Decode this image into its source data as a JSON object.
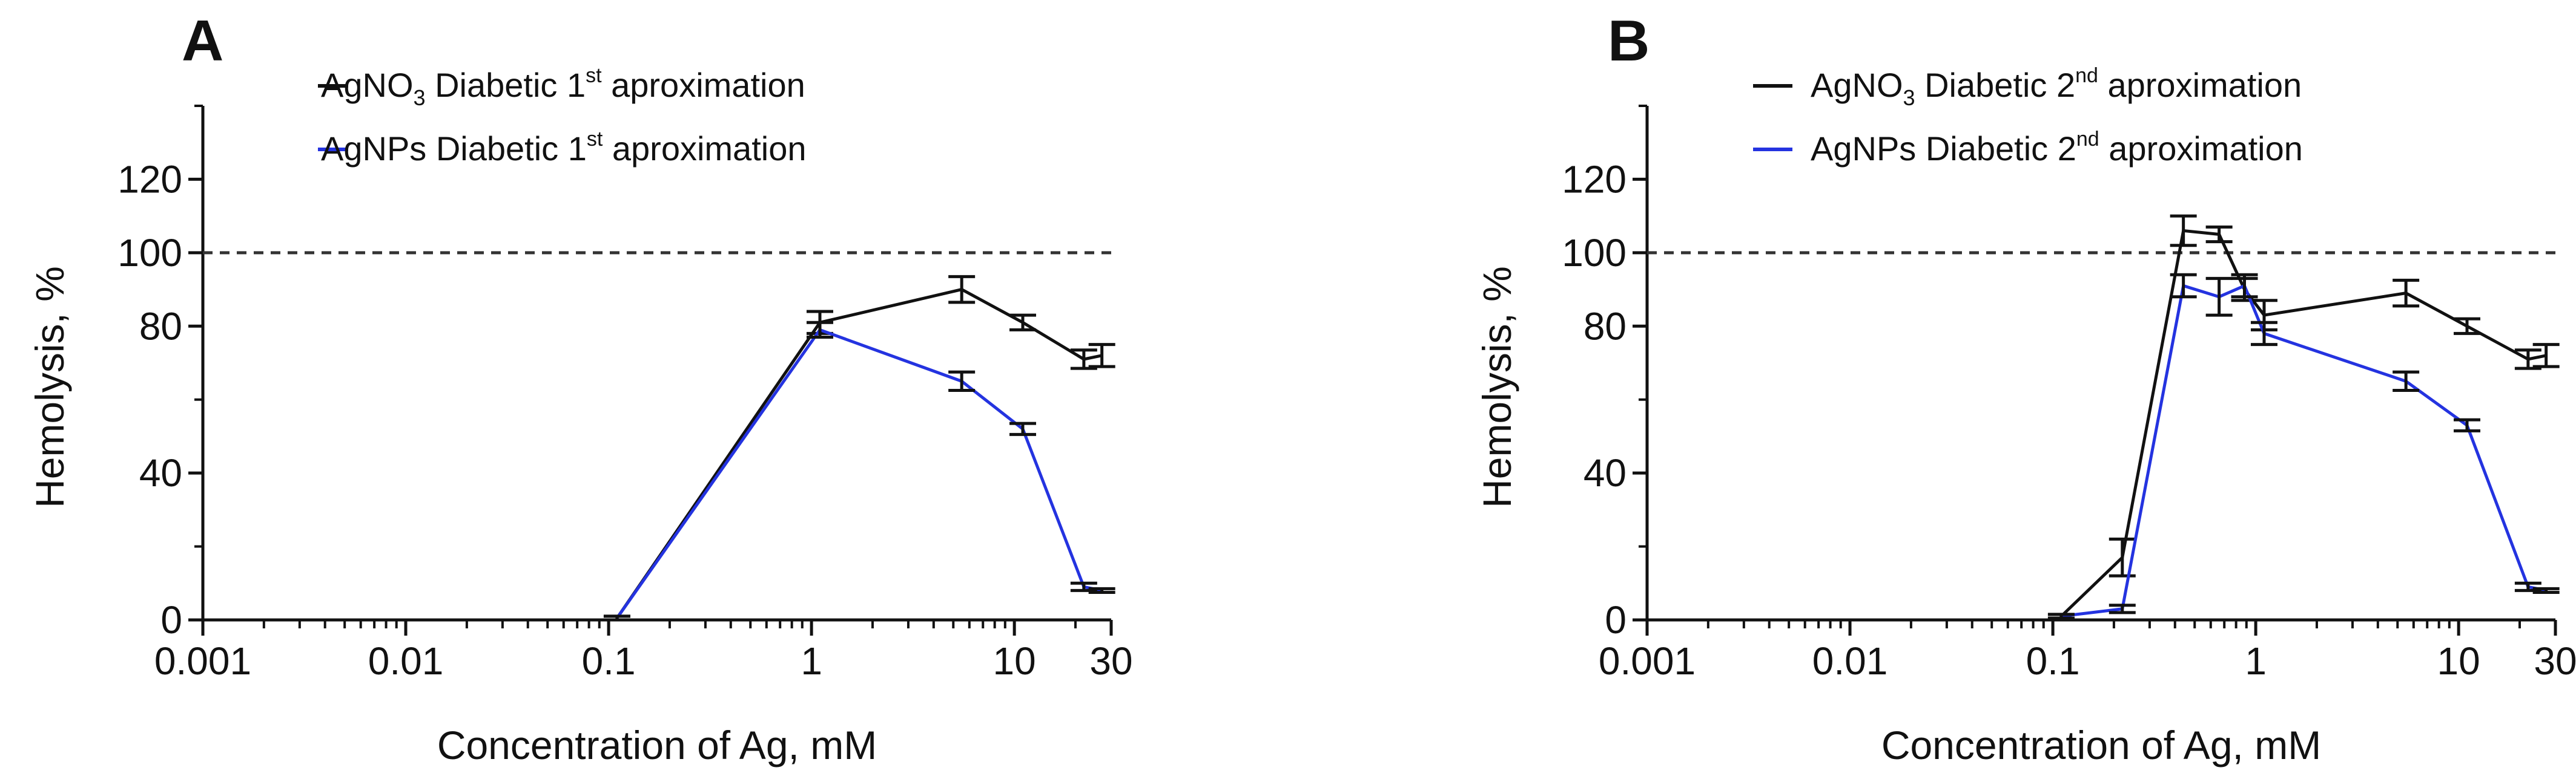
{
  "colors": {
    "series1": "#111111",
    "series2": "#2433e0",
    "reference": "#333333"
  },
  "chart_data": [
    {
      "type": "line",
      "panel_label": "A",
      "xlabel": "Concentration of Ag, mM",
      "ylabel": "Hemolysis, %",
      "xscale": "log",
      "xlim": [
        0.001,
        30
      ],
      "ylim": [
        0,
        140
      ],
      "xticks": [
        {
          "value": 0.001,
          "label": "0.001"
        },
        {
          "value": 0.01,
          "label": "0.01"
        },
        {
          "value": 0.1,
          "label": "0.1"
        },
        {
          "value": 1,
          "label": "1"
        },
        {
          "value": 10,
          "label": "10"
        },
        {
          "value": 30,
          "label": "30"
        }
      ],
      "yticks": [
        {
          "value": 0,
          "label": "0"
        },
        {
          "value": 40,
          "label": "40"
        },
        {
          "value": 80,
          "label": "80"
        },
        {
          "value": 100,
          "label": "100"
        },
        {
          "value": 120,
          "label": "120"
        }
      ],
      "reference_line": {
        "y": 100,
        "style": "dashed"
      },
      "legend": {
        "position": "top"
      },
      "series": [
        {
          "name_main": "AgNO",
          "name_sub": "3",
          "name_mid": " Diabetic 1",
          "name_sup": "st",
          "name_end": " aproximation",
          "color": "#111111",
          "x": [
            0.11,
            1.1,
            5.5,
            11,
            22,
            27
          ],
          "y": [
            0.5,
            81,
            90,
            81,
            71,
            72
          ],
          "err": [
            0.5,
            3,
            3.5,
            2,
            2.5,
            3
          ]
        },
        {
          "name_main": "AgNPs Diabetic 1",
          "name_sub": "",
          "name_mid": "",
          "name_sup": "st",
          "name_end": " aproximation",
          "color": "#2433e0",
          "x": [
            0.11,
            1.1,
            5.5,
            11,
            22,
            27
          ],
          "y": [
            0.5,
            79,
            65,
            52,
            9,
            8
          ],
          "err": [
            0.5,
            2,
            2.5,
            1.5,
            1,
            0.5
          ]
        }
      ]
    },
    {
      "type": "line",
      "panel_label": "B",
      "xlabel": "Concentration of Ag, mM",
      "ylabel": "Hemolysis, %",
      "xscale": "log",
      "xlim": [
        0.001,
        30
      ],
      "ylim": [
        0,
        140
      ],
      "xticks": [
        {
          "value": 0.001,
          "label": "0.001"
        },
        {
          "value": 0.01,
          "label": "0.01"
        },
        {
          "value": 0.1,
          "label": "0.1"
        },
        {
          "value": 1,
          "label": "1"
        },
        {
          "value": 10,
          "label": "10"
        },
        {
          "value": 30,
          "label": "30"
        }
      ],
      "yticks": [
        {
          "value": 0,
          "label": "0"
        },
        {
          "value": 40,
          "label": "40"
        },
        {
          "value": 80,
          "label": "80"
        },
        {
          "value": 100,
          "label": "100"
        },
        {
          "value": 120,
          "label": "120"
        }
      ],
      "reference_line": {
        "y": 100,
        "style": "dashed"
      },
      "legend": {
        "position": "top"
      },
      "series": [
        {
          "name_main": "AgNO",
          "name_sub": "3",
          "name_mid": " Diabetic 2",
          "name_sup": "nd",
          "name_end": " aproximation",
          "color": "#111111",
          "x": [
            0.11,
            0.22,
            0.44,
            0.66,
            0.88,
            1.1,
            5.5,
            11,
            22,
            27
          ],
          "y": [
            1,
            17,
            106,
            105,
            90,
            83,
            89,
            80,
            71,
            72
          ],
          "err": [
            0.5,
            5,
            4,
            2,
            3,
            4,
            3.5,
            2,
            2.5,
            3
          ]
        },
        {
          "name_main": "AgNPs Diabetic 2",
          "name_sub": "",
          "name_mid": "",
          "name_sup": "nd",
          "name_end": " aproximation",
          "color": "#2433e0",
          "x": [
            0.11,
            0.22,
            0.44,
            0.66,
            0.88,
            1.1,
            5.5,
            11,
            22,
            27
          ],
          "y": [
            1,
            3,
            91,
            88,
            91,
            78,
            65,
            53,
            9,
            8
          ],
          "err": [
            0.5,
            1,
            3,
            5,
            3,
            3,
            2.5,
            1.5,
            1,
            0.5
          ]
        }
      ]
    }
  ]
}
